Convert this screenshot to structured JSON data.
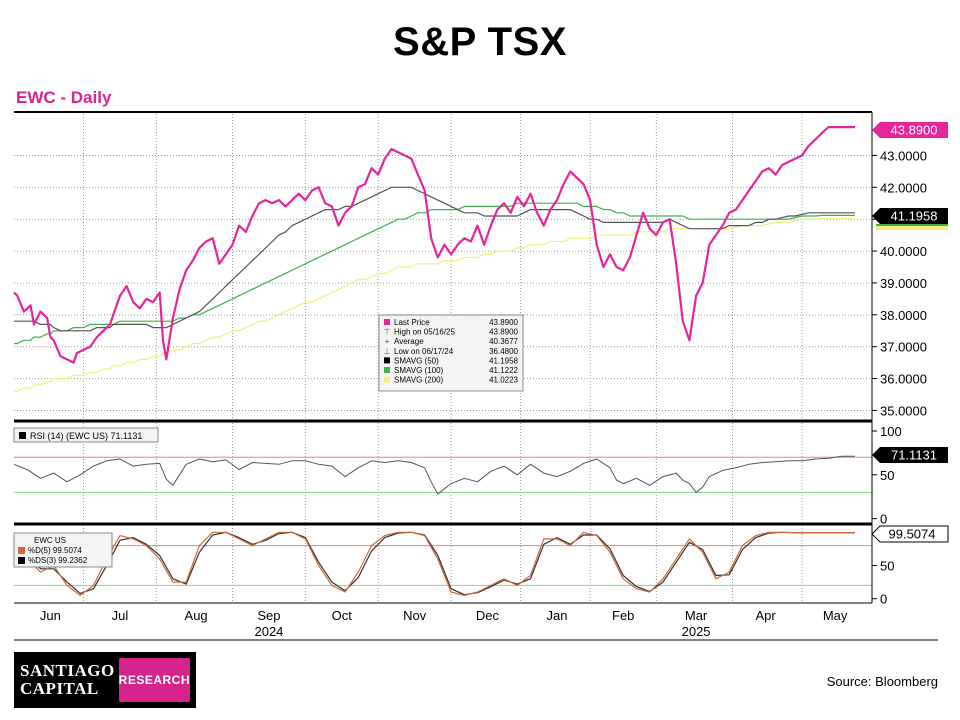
{
  "page_title": "S&P TSX",
  "chart_subtitle": "EWC - Daily",
  "source": "Source: Bloomberg",
  "logo": {
    "line1": "SANTIAGO",
    "line2": "CAPITAL",
    "tag": "RESEARCH"
  },
  "colors": {
    "price": "#e6259a",
    "sma50": "#555555",
    "sma100": "#3cb44b",
    "sma200": "#f3ef7c",
    "overbought": "#f08080",
    "oversold": "#7ddc7d"
  },
  "chart_data": [
    {
      "type": "line",
      "ylim": [
        34.7,
        44.3
      ],
      "yticks": [
        "35.0000",
        "36.0000",
        "37.0000",
        "38.0000",
        "39.0000",
        "40.0000",
        "41.0000",
        "42.0000",
        "43.0000"
      ],
      "ytick_values": [
        35,
        36,
        37,
        38,
        39,
        40,
        41,
        42,
        43
      ],
      "last_price_badge": "43.8900",
      "sma_badge": "41.1958",
      "legend": {
        "rows": [
          {
            "label": "Last Price",
            "value": "43.8900"
          },
          {
            "label": "High on 05/16/25",
            "value": "43.8900"
          },
          {
            "label": "Average",
            "value": "40.3677"
          },
          {
            "label": "Low on 06/17/24",
            "value": "36.4800"
          },
          {
            "label": "SMAVG (50)",
            "value": "41.1958"
          },
          {
            "label": "SMAVG (100)",
            "value": "41.1222"
          },
          {
            "label": "SMAVG (200)",
            "value": "41.0223"
          }
        ]
      },
      "x": [
        0,
        1,
        3,
        5,
        6,
        8,
        10,
        11,
        12,
        14,
        16,
        18,
        19,
        21,
        23,
        25,
        27,
        29,
        30,
        32,
        34,
        36,
        38,
        40,
        42,
        44,
        45,
        46,
        48,
        50,
        52,
        54,
        56,
        58,
        60,
        62,
        64,
        66,
        68,
        70,
        72,
        74,
        76,
        78,
        80,
        82,
        84,
        86,
        88,
        90,
        92,
        94,
        96,
        98,
        100,
        102,
        104,
        106,
        108,
        110,
        112,
        114,
        116,
        118,
        120,
        122,
        124,
        126,
        128,
        130,
        132,
        134,
        136,
        138,
        140,
        142,
        144,
        146,
        148,
        150,
        152,
        154,
        156,
        158,
        160,
        162,
        164,
        166,
        168,
        170,
        172,
        174,
        176,
        178,
        180,
        182,
        184,
        186,
        188,
        190,
        192,
        194,
        196,
        198,
        200,
        202,
        204,
        206,
        208,
        210,
        212,
        214,
        216,
        218,
        220,
        222,
        224,
        226,
        228,
        230,
        232,
        234,
        236,
        238,
        240,
        242,
        244,
        246,
        248,
        250,
        252,
        254
      ],
      "series": [
        {
          "name": "Last Price",
          "values": [
            38.7,
            38.6,
            38.1,
            38.3,
            37.7,
            38.1,
            37.9,
            37.3,
            37.2,
            36.7,
            36.6,
            36.5,
            36.8,
            36.9,
            37.0,
            37.3,
            37.5,
            37.7,
            38.0,
            38.6,
            38.9,
            38.4,
            38.2,
            38.5,
            38.4,
            38.7,
            37.2,
            36.6,
            37.9,
            38.8,
            39.4,
            39.7,
            40.1,
            40.3,
            40.4,
            39.6,
            39.9,
            40.2,
            40.8,
            40.6,
            41.1,
            41.5,
            41.6,
            41.5,
            41.6,
            41.4,
            41.6,
            41.8,
            41.6,
            41.9,
            42.0,
            41.5,
            41.4,
            40.8,
            41.2,
            41.4,
            42.0,
            42.1,
            42.6,
            42.4,
            42.9,
            43.2,
            43.1,
            43.0,
            42.9,
            42.4,
            41.9,
            40.4,
            39.8,
            40.2,
            39.9,
            40.2,
            40.4,
            40.3,
            40.8,
            40.2,
            40.8,
            41.3,
            41.5,
            41.2,
            41.7,
            41.4,
            41.8,
            41.2,
            40.8,
            41.3,
            41.6,
            42.1,
            42.5,
            42.3,
            42.1,
            41.6,
            40.2,
            39.5,
            39.9,
            39.5,
            39.4,
            39.8,
            40.5,
            41.2,
            40.7,
            40.5,
            40.9,
            41.0,
            39.6,
            37.8,
            37.2,
            38.6,
            39.0,
            40.2,
            40.5,
            40.8,
            41.2,
            41.3,
            41.6,
            41.9,
            42.2,
            42.5,
            42.6,
            42.4,
            42.7,
            42.8,
            42.9,
            43.0,
            43.3,
            43.5,
            43.7,
            43.89,
            43.89,
            43.89,
            43.89,
            43.89
          ]
        },
        {
          "name": "SMAVG (50)",
          "values": [
            37.8,
            37.8,
            37.8,
            37.8,
            37.8,
            37.7,
            37.7,
            37.7,
            37.6,
            37.5,
            37.5,
            37.5,
            37.5,
            37.5,
            37.5,
            37.6,
            37.6,
            37.6,
            37.7,
            37.7,
            37.7,
            37.7,
            37.7,
            37.7,
            37.6,
            37.6,
            37.6,
            37.6,
            37.7,
            37.8,
            37.9,
            38.0,
            38.1,
            38.3,
            38.5,
            38.7,
            38.9,
            39.1,
            39.3,
            39.5,
            39.7,
            39.9,
            40.1,
            40.3,
            40.5,
            40.6,
            40.8,
            40.9,
            41.0,
            41.1,
            41.2,
            41.3,
            41.3,
            41.3,
            41.4,
            41.4,
            41.5,
            41.6,
            41.7,
            41.8,
            41.9,
            42.0,
            42.0,
            42.0,
            42.0,
            41.9,
            41.8,
            41.7,
            41.6,
            41.5,
            41.4,
            41.3,
            41.2,
            41.2,
            41.2,
            41.1,
            41.1,
            41.1,
            41.1,
            41.1,
            41.1,
            41.2,
            41.3,
            41.3,
            41.3,
            41.3,
            41.3,
            41.3,
            41.3,
            41.2,
            41.1,
            41.0,
            41.0,
            40.9,
            40.9,
            40.9,
            40.9,
            40.9,
            40.9,
            40.9,
            40.9,
            40.9,
            40.9,
            41.0,
            40.9,
            40.8,
            40.7,
            40.7,
            40.7,
            40.7,
            40.7,
            40.7,
            40.8,
            40.8,
            40.8,
            40.8,
            40.9,
            40.9,
            41.0,
            41.0,
            41.05,
            41.1,
            41.1,
            41.15,
            41.2,
            41.2,
            41.2,
            41.2,
            41.2,
            41.2,
            41.2,
            41.2
          ]
        },
        {
          "name": "SMAVG (100)",
          "values": [
            37.1,
            37.1,
            37.2,
            37.2,
            37.3,
            37.3,
            37.4,
            37.4,
            37.5,
            37.5,
            37.5,
            37.6,
            37.6,
            37.6,
            37.7,
            37.7,
            37.7,
            37.7,
            37.7,
            37.8,
            37.8,
            37.8,
            37.8,
            37.8,
            37.8,
            37.8,
            37.8,
            37.8,
            37.8,
            37.9,
            37.9,
            38.0,
            38.0,
            38.1,
            38.2,
            38.3,
            38.4,
            38.5,
            38.6,
            38.7,
            38.8,
            38.9,
            39.0,
            39.1,
            39.2,
            39.3,
            39.4,
            39.5,
            39.6,
            39.7,
            39.8,
            39.9,
            40.0,
            40.1,
            40.2,
            40.3,
            40.4,
            40.5,
            40.6,
            40.7,
            40.8,
            40.9,
            41.0,
            41.0,
            41.1,
            41.2,
            41.2,
            41.3,
            41.3,
            41.3,
            41.3,
            41.3,
            41.4,
            41.4,
            41.4,
            41.4,
            41.4,
            41.4,
            41.4,
            41.4,
            41.5,
            41.5,
            41.5,
            41.5,
            41.5,
            41.5,
            41.5,
            41.5,
            41.5,
            41.5,
            41.4,
            41.4,
            41.4,
            41.3,
            41.3,
            41.2,
            41.2,
            41.1,
            41.1,
            41.1,
            41.1,
            41.1,
            41.1,
            41.1,
            41.1,
            41.1,
            41.0,
            41.0,
            41.0,
            41.0,
            41.0,
            41.0,
            41.0,
            41.0,
            41.0,
            41.0,
            41.0,
            41.0,
            41.0,
            41.0,
            41.0,
            41.0,
            41.05,
            41.1,
            41.1,
            41.1,
            41.12,
            41.12,
            41.12,
            41.12,
            41.12,
            41.12
          ]
        },
        {
          "name": "SMAVG (200)",
          "values": [
            35.6,
            35.6,
            35.7,
            35.7,
            35.8,
            35.8,
            35.9,
            35.9,
            36.0,
            36.0,
            36.0,
            36.1,
            36.1,
            36.1,
            36.2,
            36.2,
            36.3,
            36.3,
            36.4,
            36.4,
            36.5,
            36.5,
            36.6,
            36.6,
            36.7,
            36.7,
            36.8,
            36.8,
            36.9,
            36.9,
            37.0,
            37.1,
            37.1,
            37.2,
            37.3,
            37.3,
            37.4,
            37.5,
            37.5,
            37.6,
            37.7,
            37.8,
            37.8,
            37.9,
            38.0,
            38.1,
            38.2,
            38.3,
            38.4,
            38.4,
            38.5,
            38.6,
            38.7,
            38.8,
            38.9,
            39.0,
            39.1,
            39.1,
            39.2,
            39.3,
            39.3,
            39.4,
            39.5,
            39.5,
            39.5,
            39.6,
            39.6,
            39.6,
            39.6,
            39.7,
            39.7,
            39.7,
            39.8,
            39.8,
            39.8,
            39.9,
            39.9,
            40.0,
            40.0,
            40.0,
            40.1,
            40.1,
            40.2,
            40.2,
            40.2,
            40.3,
            40.3,
            40.3,
            40.4,
            40.4,
            40.4,
            40.4,
            40.5,
            40.5,
            40.5,
            40.5,
            40.5,
            40.5,
            40.6,
            40.6,
            40.6,
            40.6,
            40.6,
            40.7,
            40.7,
            40.7,
            40.7,
            40.7,
            40.7,
            40.7,
            40.7,
            40.7,
            40.7,
            40.75,
            40.8,
            40.8,
            40.8,
            40.8,
            40.85,
            40.9,
            40.9,
            40.9,
            40.95,
            41.0,
            41.0,
            41.0,
            41.02,
            41.02,
            41.02,
            41.02,
            41.02,
            41.02
          ]
        }
      ]
    },
    {
      "type": "line",
      "legend": "RSI (14) (EWC US) 71.1131",
      "badge": "71.1131",
      "ylim": [
        -5,
        108
      ],
      "yticks": [
        "100",
        "50",
        "0"
      ],
      "ytick_values": [
        100,
        50,
        0
      ],
      "overbought": 70,
      "oversold": 30,
      "x": [
        0,
        4,
        8,
        12,
        16,
        20,
        24,
        28,
        32,
        36,
        40,
        44,
        46,
        48,
        52,
        56,
        60,
        64,
        68,
        72,
        76,
        80,
        84,
        88,
        92,
        96,
        100,
        104,
        108,
        112,
        116,
        120,
        124,
        126,
        128,
        130,
        132,
        136,
        140,
        144,
        148,
        152,
        156,
        160,
        164,
        168,
        172,
        176,
        180,
        182,
        184,
        188,
        192,
        196,
        200,
        202,
        204,
        206,
        208,
        210,
        214,
        218,
        222,
        226,
        230,
        234,
        238,
        242,
        246,
        250,
        254
      ],
      "series": [
        {
          "name": "RSI (14) (EWC US)",
          "values": [
            62,
            56,
            46,
            52,
            42,
            50,
            60,
            66,
            68,
            60,
            62,
            63,
            45,
            38,
            62,
            68,
            65,
            67,
            56,
            64,
            63,
            62,
            66,
            66,
            62,
            60,
            48,
            58,
            66,
            64,
            66,
            64,
            58,
            42,
            28,
            34,
            40,
            46,
            42,
            54,
            60,
            50,
            62,
            52,
            48,
            54,
            63,
            68,
            58,
            44,
            40,
            46,
            38,
            48,
            52,
            44,
            40,
            30,
            36,
            48,
            55,
            58,
            62,
            64,
            65,
            66,
            66,
            68,
            69,
            71.1,
            71.1
          ]
        }
      ]
    },
    {
      "type": "line",
      "legend": [
        "EWC US",
        "%D(5) 99.5074",
        "%DS(3) 99.2362"
      ],
      "badge": "99.5074",
      "ylim": [
        -5,
        108
      ],
      "yticks": [
        "50",
        "0"
      ],
      "ytick_values": [
        50,
        0
      ],
      "overbought": 80,
      "oversold": 20,
      "x": [
        0,
        4,
        8,
        12,
        16,
        20,
        24,
        28,
        32,
        36,
        40,
        44,
        48,
        52,
        56,
        60,
        64,
        68,
        72,
        76,
        80,
        84,
        88,
        92,
        96,
        100,
        104,
        108,
        112,
        116,
        120,
        124,
        128,
        132,
        136,
        140,
        144,
        148,
        152,
        156,
        160,
        164,
        168,
        172,
        176,
        180,
        184,
        188,
        192,
        196,
        200,
        204,
        208,
        212,
        216,
        220,
        224,
        228,
        232,
        236,
        240,
        244,
        248,
        254
      ],
      "series": [
        {
          "name": "%D(5)",
          "values": [
            90,
            60,
            40,
            50,
            20,
            5,
            20,
            60,
            95,
            90,
            80,
            60,
            25,
            25,
            80,
            100,
            100,
            90,
            80,
            90,
            100,
            100,
            90,
            50,
            20,
            10,
            40,
            80,
            95,
            100,
            100,
            95,
            60,
            10,
            5,
            10,
            20,
            30,
            20,
            35,
            90,
            90,
            80,
            100,
            95,
            70,
            30,
            15,
            10,
            30,
            60,
            90,
            70,
            30,
            40,
            80,
            95,
            100,
            100,
            99.5,
            99.5,
            99.5,
            99.5,
            99.5
          ]
        },
        {
          "name": "%DS(3)",
          "values": [
            85,
            65,
            45,
            45,
            25,
            8,
            15,
            50,
            88,
            92,
            82,
            65,
            30,
            22,
            70,
            96,
            100,
            92,
            82,
            88,
            98,
            100,
            92,
            55,
            25,
            12,
            32,
            72,
            92,
            99,
            100,
            96,
            65,
            15,
            6,
            9,
            18,
            28,
            22,
            30,
            82,
            92,
            82,
            96,
            96,
            75,
            35,
            18,
            11,
            25,
            55,
            85,
            74,
            35,
            36,
            74,
            92,
            99,
            100,
            99.2,
            99.2,
            99.2,
            99.2,
            99.2
          ]
        }
      ]
    }
  ],
  "x_axis": {
    "months": [
      "Jun",
      "Jul",
      "Aug",
      "Sep",
      "Oct",
      "Nov",
      "Dec",
      "Jan",
      "Feb",
      "Mar",
      "Apr",
      "May"
    ],
    "month_positions": [
      11,
      32,
      55,
      77,
      99,
      121,
      143,
      164,
      184,
      206,
      227,
      248
    ],
    "month_boundaries": [
      0,
      21,
      43,
      66,
      88,
      110,
      132,
      153,
      174,
      194,
      217,
      238
    ],
    "years": [
      "2024",
      "2025"
    ],
    "year_positions": [
      77,
      206
    ]
  }
}
